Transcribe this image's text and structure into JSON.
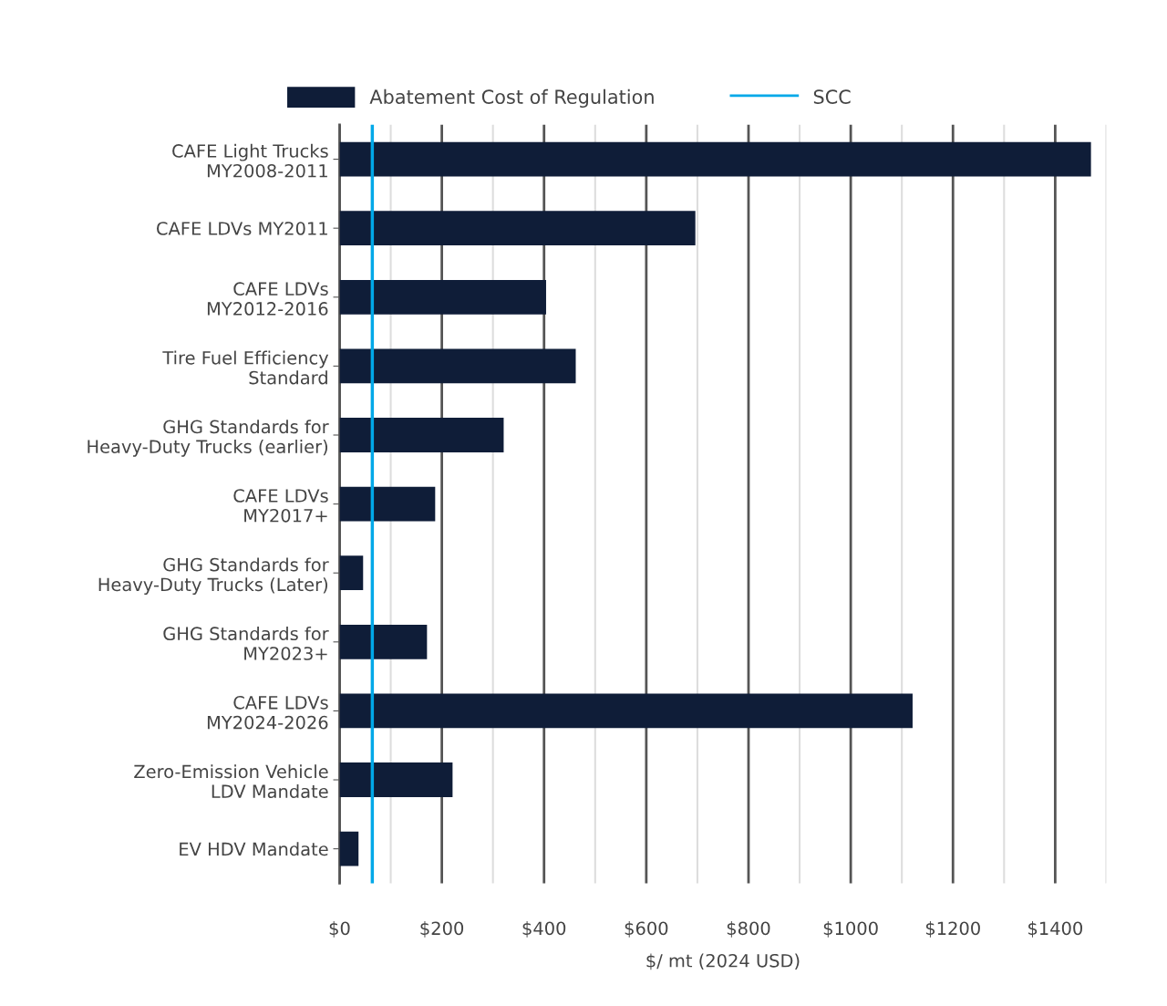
{
  "chart_data": {
    "type": "bar",
    "orientation": "horizontal",
    "categories": [
      "CAFE Light Trucks\nMY2008-2011",
      "CAFE LDVs MY2011",
      "CAFE LDVs\nMY2012-2016",
      "Tire Fuel Efficiency\nStandard",
      "GHG Standards for\nHeavy-Duty Trucks (earlier)",
      "CAFE LDVs\nMY2017+",
      "GHG Standards for\nHeavy-Duty Trucks (Later)",
      "GHG Standards for\nMY2023+",
      "CAFE LDVs\nMY2024-2026",
      "Zero-Emission Vehicle\nLDV Mandate",
      "EV HDV Mandate"
    ],
    "series": [
      {
        "name": "Abatement Cost of Regulation",
        "color": "#0f1d38",
        "values": [
          1470,
          696,
          404,
          462,
          321,
          187,
          46,
          171,
          1121,
          221,
          37
        ]
      }
    ],
    "ref_lines": [
      {
        "axis": "x",
        "value": 64,
        "label": "SCC",
        "color": "#00a8e8"
      }
    ],
    "xlabel": "$/ mt (2024 USD)",
    "xlim": [
      0,
      1500
    ],
    "xticks": [
      {
        "value": 0,
        "label": "$0"
      },
      {
        "value": 100,
        "label": null
      },
      {
        "value": 200,
        "label": "$200"
      },
      {
        "value": 300,
        "label": null
      },
      {
        "value": 400,
        "label": "$400"
      },
      {
        "value": 500,
        "label": null
      },
      {
        "value": 600,
        "label": "$600"
      },
      {
        "value": 700,
        "label": null
      },
      {
        "value": 800,
        "label": "$800"
      },
      {
        "value": 900,
        "label": null
      },
      {
        "value": 1000,
        "label": "$1000"
      },
      {
        "value": 1100,
        "label": null
      },
      {
        "value": 1200,
        "label": "$1200"
      },
      {
        "value": 1300,
        "label": null
      },
      {
        "value": 1400,
        "label": "$1400"
      },
      {
        "value": 1500,
        "label": null
      }
    ],
    "grid": "x",
    "legend": "top"
  }
}
